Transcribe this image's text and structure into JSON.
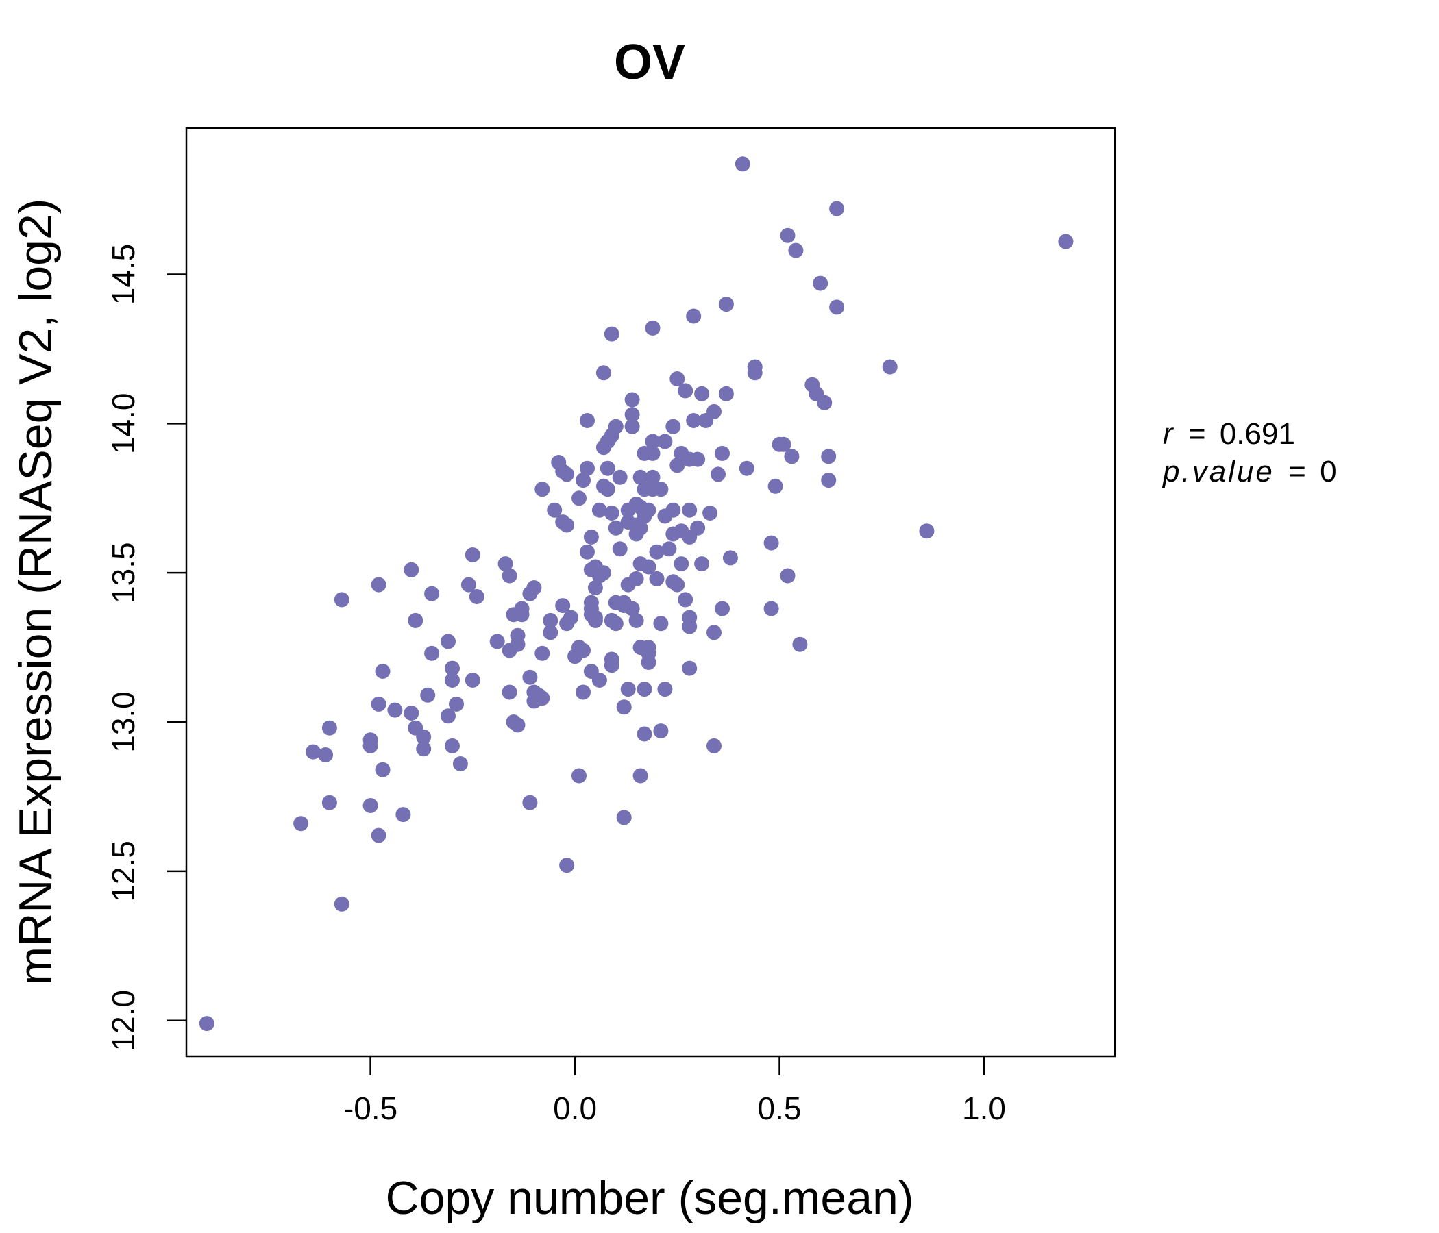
{
  "colors": {
    "points": "#7570b3",
    "title": "#7570b3",
    "axis": "#000000"
  },
  "chart_data": {
    "type": "scatter",
    "title": "OV",
    "xlabel": "Copy number (seg.mean)",
    "ylabel": "mRNA Expression (RNASeq V2, log2)",
    "xlim": [
      -0.95,
      1.32
    ],
    "ylim": [
      11.88,
      14.99
    ],
    "xticks": [
      "-0.5",
      "0.0",
      "0.5",
      "1.0"
    ],
    "yticks": [
      "12.0",
      "12.5",
      "13.0",
      "13.5",
      "14.0",
      "14.5"
    ],
    "stats": {
      "r_label": "r",
      "r_value": "0.691",
      "p_label": "p.value",
      "p_value": "0"
    },
    "points": [
      [
        -0.9,
        11.99
      ],
      [
        -0.67,
        12.66
      ],
      [
        -0.57,
        12.39
      ],
      [
        -0.6,
        12.73
      ],
      [
        -0.5,
        12.72
      ],
      [
        -0.48,
        12.62
      ],
      [
        -0.42,
        12.69
      ],
      [
        -0.64,
        12.9
      ],
      [
        -0.61,
        12.89
      ],
      [
        -0.6,
        12.98
      ],
      [
        -0.5,
        12.92
      ],
      [
        -0.5,
        12.94
      ],
      [
        -0.47,
        12.84
      ],
      [
        -0.48,
        13.06
      ],
      [
        -0.44,
        13.04
      ],
      [
        -0.4,
        13.03
      ],
      [
        -0.39,
        12.98
      ],
      [
        -0.37,
        12.95
      ],
      [
        -0.37,
        12.91
      ],
      [
        -0.36,
        13.09
      ],
      [
        -0.47,
        13.17
      ],
      [
        -0.57,
        13.41
      ],
      [
        -0.48,
        13.46
      ],
      [
        -0.4,
        13.51
      ],
      [
        -0.39,
        13.34
      ],
      [
        -0.35,
        13.43
      ],
      [
        -0.35,
        13.23
      ],
      [
        -0.31,
        13.27
      ],
      [
        -0.3,
        13.18
      ],
      [
        -0.3,
        13.14
      ],
      [
        -0.29,
        13.06
      ],
      [
        -0.31,
        13.02
      ],
      [
        -0.3,
        12.92
      ],
      [
        -0.28,
        12.86
      ],
      [
        -0.25,
        13.14
      ],
      [
        -0.26,
        13.46
      ],
      [
        -0.24,
        13.42
      ],
      [
        -0.25,
        13.56
      ],
      [
        -0.19,
        13.27
      ],
      [
        -0.17,
        13.53
      ],
      [
        -0.16,
        13.49
      ],
      [
        -0.16,
        13.24
      ],
      [
        -0.16,
        13.1
      ],
      [
        -0.15,
        13.36
      ],
      [
        -0.14,
        13.29
      ],
      [
        -0.14,
        13.26
      ],
      [
        -0.15,
        13.0
      ],
      [
        -0.14,
        12.99
      ],
      [
        -0.13,
        13.38
      ],
      [
        -0.13,
        13.36
      ],
      [
        -0.11,
        13.43
      ],
      [
        -0.1,
        13.45
      ],
      [
        -0.1,
        13.1
      ],
      [
        -0.1,
        13.07
      ],
      [
        -0.09,
        13.09
      ],
      [
        -0.11,
        13.15
      ],
      [
        -0.11,
        12.73
      ],
      [
        -0.08,
        13.23
      ],
      [
        -0.08,
        13.08
      ],
      [
        -0.06,
        13.34
      ],
      [
        -0.06,
        13.3
      ],
      [
        -0.05,
        13.71
      ],
      [
        -0.08,
        13.78
      ],
      [
        -0.04,
        13.87
      ],
      [
        -0.03,
        13.84
      ],
      [
        -0.02,
        13.83
      ],
      [
        -0.03,
        13.67
      ],
      [
        -0.02,
        13.66
      ],
      [
        -0.03,
        13.39
      ],
      [
        -0.02,
        13.33
      ],
      [
        -0.01,
        13.35
      ],
      [
        0.0,
        13.22
      ],
      [
        0.01,
        13.25
      ],
      [
        0.02,
        13.24
      ],
      [
        -0.02,
        12.52
      ],
      [
        0.01,
        12.82
      ],
      [
        0.02,
        13.1
      ],
      [
        0.01,
        13.75
      ],
      [
        0.02,
        13.81
      ],
      [
        0.03,
        13.85
      ],
      [
        0.03,
        14.01
      ],
      [
        0.04,
        13.62
      ],
      [
        0.03,
        13.57
      ],
      [
        0.04,
        13.51
      ],
      [
        0.05,
        13.52
      ],
      [
        0.05,
        13.45
      ],
      [
        0.04,
        13.4
      ],
      [
        0.04,
        13.38
      ],
      [
        0.04,
        13.36
      ],
      [
        0.05,
        13.35
      ],
      [
        0.05,
        13.34
      ],
      [
        0.04,
        13.17
      ],
      [
        0.06,
        13.14
      ],
      [
        0.06,
        13.49
      ],
      [
        0.07,
        13.5
      ],
      [
        0.06,
        13.71
      ],
      [
        0.07,
        13.79
      ],
      [
        0.07,
        13.92
      ],
      [
        0.08,
        13.94
      ],
      [
        0.09,
        13.96
      ],
      [
        0.07,
        14.17
      ],
      [
        0.09,
        14.3
      ],
      [
        0.08,
        13.85
      ],
      [
        0.08,
        13.78
      ],
      [
        0.09,
        13.7
      ],
      [
        0.1,
        13.65
      ],
      [
        0.1,
        13.4
      ],
      [
        0.09,
        13.34
      ],
      [
        0.1,
        13.33
      ],
      [
        0.09,
        13.21
      ],
      [
        0.09,
        13.19
      ],
      [
        0.1,
        13.99
      ],
      [
        0.11,
        13.82
      ],
      [
        0.11,
        13.58
      ],
      [
        0.12,
        13.4
      ],
      [
        0.12,
        13.39
      ],
      [
        0.12,
        13.05
      ],
      [
        0.12,
        12.68
      ],
      [
        0.13,
        13.71
      ],
      [
        0.13,
        13.67
      ],
      [
        0.13,
        13.46
      ],
      [
        0.13,
        13.11
      ],
      [
        0.14,
        13.38
      ],
      [
        0.14,
        13.99
      ],
      [
        0.14,
        14.03
      ],
      [
        0.14,
        14.08
      ],
      [
        0.15,
        13.73
      ],
      [
        0.15,
        13.66
      ],
      [
        0.15,
        13.63
      ],
      [
        0.15,
        13.48
      ],
      [
        0.15,
        13.34
      ],
      [
        0.16,
        13.82
      ],
      [
        0.16,
        13.72
      ],
      [
        0.16,
        13.65
      ],
      [
        0.16,
        13.53
      ],
      [
        0.16,
        13.25
      ],
      [
        0.16,
        12.82
      ],
      [
        0.17,
        13.9
      ],
      [
        0.17,
        13.78
      ],
      [
        0.17,
        13.69
      ],
      [
        0.17,
        13.11
      ],
      [
        0.17,
        12.96
      ],
      [
        0.18,
        13.71
      ],
      [
        0.18,
        13.52
      ],
      [
        0.18,
        13.25
      ],
      [
        0.18,
        13.23
      ],
      [
        0.18,
        13.2
      ],
      [
        0.19,
        14.32
      ],
      [
        0.19,
        13.94
      ],
      [
        0.19,
        13.9
      ],
      [
        0.19,
        13.82
      ],
      [
        0.19,
        13.78
      ],
      [
        0.2,
        13.57
      ],
      [
        0.2,
        13.48
      ],
      [
        0.21,
        13.33
      ],
      [
        0.21,
        12.97
      ],
      [
        0.21,
        13.78
      ],
      [
        0.22,
        13.94
      ],
      [
        0.22,
        13.69
      ],
      [
        0.22,
        13.11
      ],
      [
        0.23,
        13.58
      ],
      [
        0.24,
        13.99
      ],
      [
        0.24,
        13.71
      ],
      [
        0.24,
        13.63
      ],
      [
        0.24,
        13.47
      ],
      [
        0.25,
        13.46
      ],
      [
        0.25,
        14.15
      ],
      [
        0.25,
        13.86
      ],
      [
        0.26,
        13.9
      ],
      [
        0.26,
        13.64
      ],
      [
        0.26,
        13.53
      ],
      [
        0.27,
        14.11
      ],
      [
        0.27,
        13.41
      ],
      [
        0.28,
        13.88
      ],
      [
        0.28,
        13.71
      ],
      [
        0.28,
        13.62
      ],
      [
        0.28,
        13.35
      ],
      [
        0.28,
        13.32
      ],
      [
        0.28,
        13.18
      ],
      [
        0.29,
        14.36
      ],
      [
        0.29,
        14.01
      ],
      [
        0.3,
        13.88
      ],
      [
        0.3,
        13.65
      ],
      [
        0.31,
        13.53
      ],
      [
        0.31,
        14.1
      ],
      [
        0.32,
        14.01
      ],
      [
        0.33,
        13.7
      ],
      [
        0.34,
        14.04
      ],
      [
        0.34,
        13.3
      ],
      [
        0.34,
        12.92
      ],
      [
        0.35,
        13.83
      ],
      [
        0.36,
        13.38
      ],
      [
        0.36,
        13.9
      ],
      [
        0.37,
        14.4
      ],
      [
        0.37,
        14.1
      ],
      [
        0.38,
        13.55
      ],
      [
        0.41,
        14.87
      ],
      [
        0.42,
        13.85
      ],
      [
        0.44,
        14.19
      ],
      [
        0.44,
        14.17
      ],
      [
        0.48,
        13.6
      ],
      [
        0.48,
        13.38
      ],
      [
        0.49,
        13.79
      ],
      [
        0.5,
        13.93
      ],
      [
        0.51,
        13.93
      ],
      [
        0.52,
        13.49
      ],
      [
        0.52,
        14.63
      ],
      [
        0.53,
        13.89
      ],
      [
        0.54,
        14.58
      ],
      [
        0.55,
        13.26
      ],
      [
        0.58,
        14.13
      ],
      [
        0.59,
        14.1
      ],
      [
        0.6,
        14.47
      ],
      [
        0.61,
        14.07
      ],
      [
        0.62,
        13.81
      ],
      [
        0.62,
        13.89
      ],
      [
        0.64,
        14.39
      ],
      [
        0.64,
        14.72
      ],
      [
        0.77,
        14.19
      ],
      [
        0.86,
        13.64
      ],
      [
        1.2,
        14.61
      ]
    ]
  }
}
